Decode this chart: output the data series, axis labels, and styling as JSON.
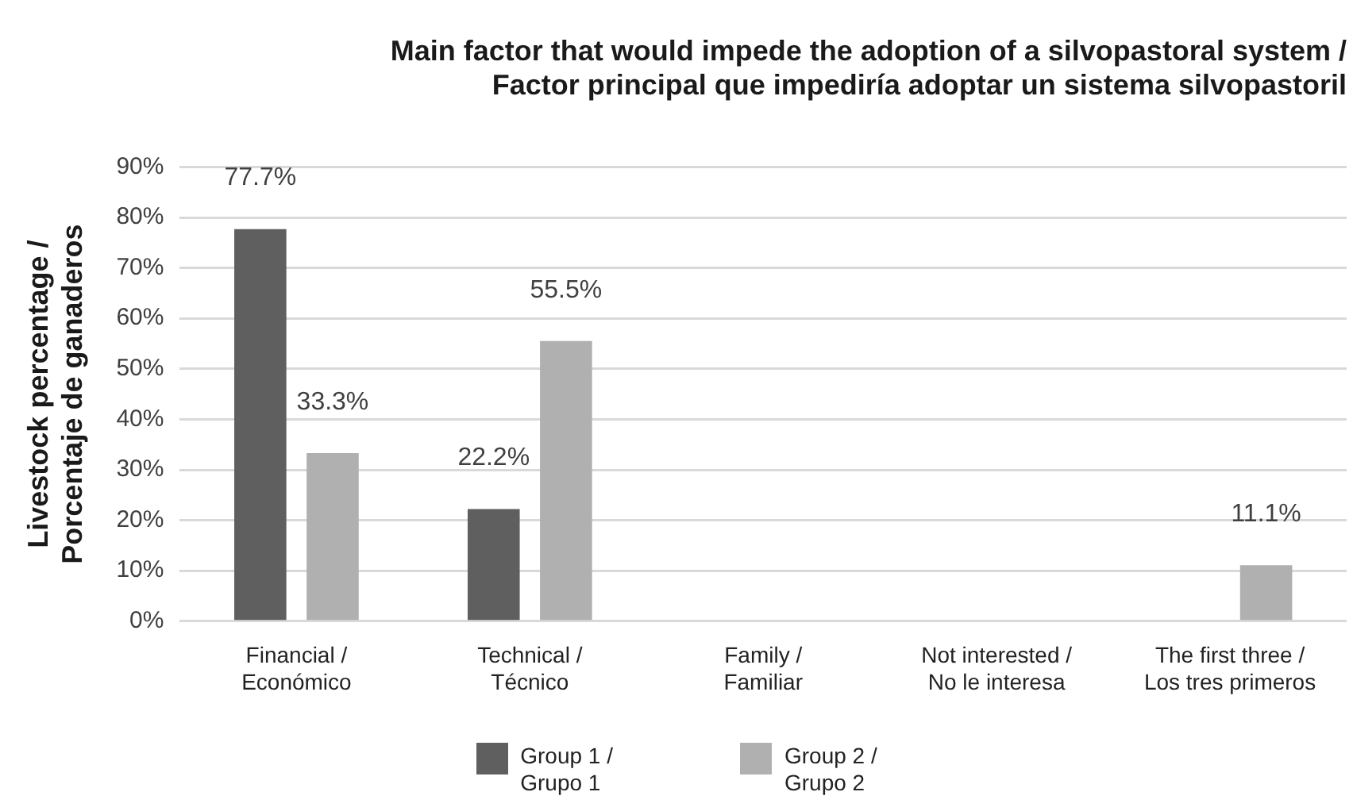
{
  "chart_data": {
    "type": "bar",
    "title": "Main factor that would impede the adoption of a silvopastoral system /\nFactor principal que impediría adoptar un sistema silvopastoril",
    "ylabel": "Livestock percentage /\nPorcentaje de ganaderos",
    "categories": [
      "Financial /\nEconómico",
      "Technical /\nTécnico",
      "Family /\nFamiliar",
      "Not interested /\nNo le interesa",
      "The first three /\nLos tres primeros"
    ],
    "series": [
      {
        "name": "Group 1 /\nGrupo 1",
        "color": "#5f5f5f",
        "values": [
          77.7,
          22.2,
          null,
          null,
          null
        ],
        "value_labels": [
          "77.7%",
          "22.2%",
          null,
          null,
          null
        ]
      },
      {
        "name": "Group 2 /\nGrupo 2",
        "color": "#b0b0b0",
        "values": [
          33.3,
          55.5,
          null,
          null,
          11.1
        ],
        "value_labels": [
          "33.3%",
          "55.5%",
          null,
          null,
          "11.1%"
        ]
      }
    ],
    "ylim": [
      0,
      90
    ],
    "yticks": [
      {
        "value": 0,
        "label": "0%"
      },
      {
        "value": 10,
        "label": "10%"
      },
      {
        "value": 20,
        "label": "20%"
      },
      {
        "value": 30,
        "label": "30%"
      },
      {
        "value": 40,
        "label": "40%"
      },
      {
        "value": 50,
        "label": "50%"
      },
      {
        "value": 60,
        "label": "60%"
      },
      {
        "value": 70,
        "label": "70%"
      },
      {
        "value": 80,
        "label": "80%"
      },
      {
        "value": 90,
        "label": "90%"
      }
    ],
    "grid": "y",
    "legend": "bottom"
  }
}
